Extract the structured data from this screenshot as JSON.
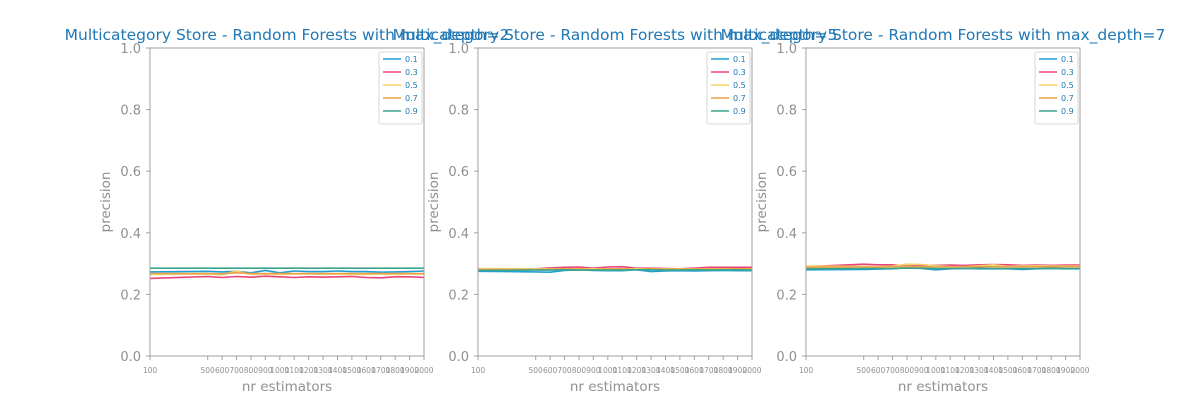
{
  "colors": {
    "title": "#1f77b4",
    "axis_label": "#909090",
    "tick_label": "#909090",
    "frame": "#a0a0a0",
    "series": [
      "#1f9fd5",
      "#e8447a",
      "#f2d16b",
      "#e8a24a",
      "#3aa58c"
    ]
  },
  "chart_data": [
    {
      "type": "line",
      "title": "Multicategory Store - Random Forests with max_depth=2",
      "xlabel": "nr estimators",
      "ylabel": "precision",
      "x": [
        100,
        500,
        600,
        700,
        800,
        900,
        1000,
        1100,
        1200,
        1300,
        1400,
        1500,
        1600,
        1700,
        1800,
        1900,
        2000
      ],
      "x_tick_labels": [
        "100",
        "500",
        "600",
        "700",
        "800",
        "900",
        "1000",
        "1100",
        "1200",
        "1300",
        "1400",
        "1500",
        "1600",
        "1700",
        "1800",
        "1900",
        "2000"
      ],
      "xlim": [
        100,
        2000
      ],
      "ylim": [
        0.0,
        1.0
      ],
      "y_ticks": [
        "0.0",
        "0.2",
        "0.4",
        "0.6",
        "0.8",
        "1.0"
      ],
      "grid": false,
      "legend_position": "top-right",
      "series": [
        {
          "name": "0.1",
          "values": [
            0.273,
            0.275,
            0.273,
            0.275,
            0.27,
            0.278,
            0.27,
            0.276,
            0.274,
            0.274,
            0.276,
            0.274,
            0.274,
            0.272,
            0.273,
            0.274,
            0.276
          ]
        },
        {
          "name": "0.3",
          "values": [
            0.252,
            0.258,
            0.255,
            0.258,
            0.256,
            0.259,
            0.257,
            0.255,
            0.257,
            0.256,
            0.257,
            0.258,
            0.255,
            0.254,
            0.257,
            0.257,
            0.255
          ]
        },
        {
          "name": "0.5",
          "values": [
            0.265,
            0.266,
            0.264,
            0.276,
            0.265,
            0.266,
            0.265,
            0.266,
            0.266,
            0.265,
            0.266,
            0.265,
            0.265,
            0.266,
            0.265,
            0.266,
            0.266
          ]
        },
        {
          "name": "0.7",
          "values": [
            0.268,
            0.268,
            0.267,
            0.27,
            0.268,
            0.268,
            0.268,
            0.268,
            0.268,
            0.268,
            0.268,
            0.268,
            0.268,
            0.268,
            0.268,
            0.268,
            0.268
          ]
        },
        {
          "name": "0.9",
          "values": [
            0.285,
            0.285,
            0.285,
            0.285,
            0.285,
            0.285,
            0.285,
            0.285,
            0.285,
            0.285,
            0.285,
            0.285,
            0.285,
            0.285,
            0.285,
            0.285,
            0.285
          ]
        }
      ]
    },
    {
      "type": "line",
      "title": "Multicategory Store - Random Forests with max_depth=5",
      "xlabel": "nr estimators",
      "ylabel": "precision",
      "x": [
        100,
        500,
        600,
        700,
        800,
        900,
        1000,
        1100,
        1200,
        1300,
        1400,
        1500,
        1600,
        1700,
        1800,
        1900,
        2000
      ],
      "x_tick_labels": [
        "100",
        "500",
        "600",
        "700",
        "800",
        "900",
        "1000",
        "1100",
        "1200",
        "1300",
        "1400",
        "1500",
        "1600",
        "1700",
        "1800",
        "1900",
        "2000"
      ],
      "xlim": [
        100,
        2000
      ],
      "ylim": [
        0.0,
        1.0
      ],
      "y_ticks": [
        "0.0",
        "0.2",
        "0.4",
        "0.6",
        "0.8",
        "1.0"
      ],
      "grid": false,
      "legend_position": "top-right",
      "series": [
        {
          "name": "0.1",
          "values": [
            0.275,
            0.273,
            0.272,
            0.278,
            0.28,
            0.278,
            0.277,
            0.277,
            0.28,
            0.274,
            0.276,
            0.277,
            0.276,
            0.277,
            0.278,
            0.277,
            0.277
          ]
        },
        {
          "name": "0.3",
          "values": [
            0.282,
            0.283,
            0.286,
            0.288,
            0.289,
            0.285,
            0.289,
            0.29,
            0.285,
            0.285,
            0.284,
            0.283,
            0.285,
            0.288,
            0.288,
            0.288,
            0.288
          ]
        },
        {
          "name": "0.5",
          "values": [
            0.284,
            0.283,
            0.283,
            0.283,
            0.283,
            0.283,
            0.283,
            0.283,
            0.283,
            0.283,
            0.283,
            0.283,
            0.283,
            0.283,
            0.283,
            0.283,
            0.283
          ]
        },
        {
          "name": "0.7",
          "values": [
            0.281,
            0.281,
            0.282,
            0.283,
            0.282,
            0.281,
            0.282,
            0.283,
            0.281,
            0.284,
            0.282,
            0.282,
            0.283,
            0.282,
            0.282,
            0.283,
            0.282
          ]
        },
        {
          "name": "0.9",
          "values": [
            0.278,
            0.279,
            0.279,
            0.28,
            0.279,
            0.279,
            0.279,
            0.279,
            0.28,
            0.28,
            0.279,
            0.279,
            0.28,
            0.279,
            0.28,
            0.28,
            0.279
          ]
        }
      ]
    },
    {
      "type": "line",
      "title": "Multicategory Store - Random Forests with max_depth=7",
      "xlabel": "nr estimators",
      "ylabel": "precision",
      "x": [
        100,
        500,
        600,
        700,
        800,
        900,
        1000,
        1100,
        1200,
        1300,
        1400,
        1500,
        1600,
        1700,
        1800,
        1900,
        2000
      ],
      "x_tick_labels": [
        "100",
        "500",
        "600",
        "700",
        "800",
        "900",
        "1000",
        "1100",
        "1200",
        "1300",
        "1400",
        "1500",
        "1600",
        "1700",
        "1800",
        "1900",
        "2000"
      ],
      "xlim": [
        100,
        2000
      ],
      "ylim": [
        0.0,
        1.0
      ],
      "y_ticks": [
        "0.0",
        "0.2",
        "0.4",
        "0.6",
        "0.8",
        "1.0"
      ],
      "grid": false,
      "legend_position": "top-right",
      "series": [
        {
          "name": "0.1",
          "values": [
            0.28,
            0.281,
            0.282,
            0.283,
            0.287,
            0.284,
            0.28,
            0.283,
            0.284,
            0.283,
            0.283,
            0.283,
            0.281,
            0.283,
            0.284,
            0.283,
            0.283
          ]
        },
        {
          "name": "0.3",
          "values": [
            0.29,
            0.298,
            0.296,
            0.296,
            0.292,
            0.294,
            0.294,
            0.295,
            0.294,
            0.296,
            0.297,
            0.296,
            0.294,
            0.295,
            0.294,
            0.295,
            0.295
          ]
        },
        {
          "name": "0.5",
          "values": [
            0.292,
            0.291,
            0.29,
            0.292,
            0.298,
            0.297,
            0.293,
            0.29,
            0.29,
            0.293,
            0.296,
            0.291,
            0.292,
            0.293,
            0.292,
            0.292,
            0.292
          ]
        },
        {
          "name": "0.7",
          "values": [
            0.288,
            0.289,
            0.288,
            0.29,
            0.291,
            0.29,
            0.289,
            0.289,
            0.29,
            0.29,
            0.29,
            0.289,
            0.289,
            0.29,
            0.29,
            0.29,
            0.29
          ]
        },
        {
          "name": "0.9",
          "values": [
            0.283,
            0.284,
            0.284,
            0.284,
            0.285,
            0.285,
            0.284,
            0.284,
            0.284,
            0.285,
            0.284,
            0.284,
            0.284,
            0.284,
            0.285,
            0.284,
            0.284
          ]
        }
      ]
    }
  ]
}
